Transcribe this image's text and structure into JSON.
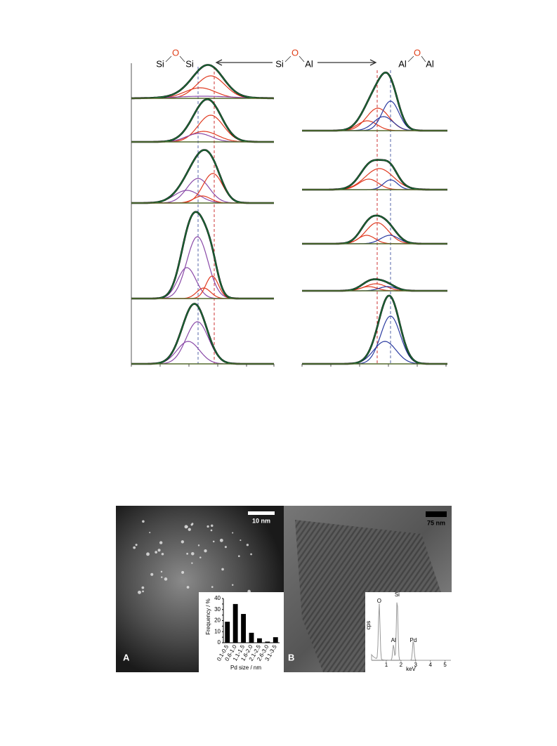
{
  "spectra": {
    "labels": [
      {
        "left": "Si",
        "bridge": "O",
        "right": "Si"
      },
      {
        "left": "Si",
        "bridge": "O",
        "right": "Al"
      },
      {
        "left": "Al",
        "bridge": "O",
        "right": "Al"
      }
    ]
  },
  "panel_a": {
    "letter": "A",
    "scale_bar": "10 nm",
    "chart_data": {
      "type": "bar",
      "y_label": "Frequency / %",
      "x_label": "Pd size / nm",
      "categories": [
        "0.1-0.5",
        "0.6-1.0",
        "1.1-1.5",
        "1.6-2.0",
        "2.1-2.5",
        "2.6-3.0",
        "3.1-3.5"
      ],
      "values": [
        19,
        35,
        26,
        9,
        4,
        1,
        5
      ],
      "color": "#000000",
      "ylim": [
        0,
        40
      ],
      "yticks": [
        0,
        5,
        10,
        15,
        20,
        25,
        30,
        35,
        40
      ]
    }
  },
  "panel_b": {
    "letter": "B",
    "scale_bar": "75 nm",
    "edx": {
      "y_label": "cps",
      "x_label": "keV",
      "xlim": [
        0,
        5.4
      ],
      "xticks": [
        1,
        2,
        3,
        4,
        5
      ],
      "peaks": [
        {
          "label": "O",
          "value": 0.52
        },
        {
          "label": "Si",
          "value": 1.74
        },
        {
          "label": "Al",
          "value": 1.49
        },
        {
          "label": "Pd",
          "value": 2.84
        }
      ]
    }
  }
}
